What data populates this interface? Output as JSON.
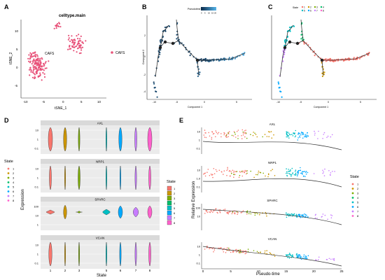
{
  "panel_labels": [
    "A",
    "B",
    "C",
    "D",
    "E"
  ],
  "panel_a": {
    "title": "celltype.main",
    "cluster_label": "CAFS",
    "legend_label": "CAFS",
    "xlabel": "tSNE_1",
    "ylabel": "tSNE_2",
    "xticks": [
      "-10",
      "-5",
      "0",
      "5",
      "10"
    ],
    "yticks": [
      "10",
      "5",
      "0",
      "-5"
    ],
    "point_color": "#e8537a"
  },
  "panel_b": {
    "legend_title": "Pseudotime",
    "legend_ticks": [
      "0",
      "5",
      "10",
      "15",
      "20"
    ],
    "xlabel": "Component 1",
    "ylabel": "Component 2",
    "xticks": [
      "-10",
      "-5",
      "0",
      "5"
    ],
    "yticks": [
      "2",
      "0",
      "-2",
      "-4"
    ],
    "colors": {
      "low": "#0b2a4a",
      "high": "#56b4e9"
    }
  },
  "panel_c": {
    "legend_title": "State",
    "legend_row1": [
      "1",
      "2",
      "3",
      "4"
    ],
    "legend_row2": [
      "5",
      "6",
      "7",
      "8"
    ],
    "xlabel": "Component 1",
    "ylabel": "Component 2",
    "xticks": [
      "-10",
      "-5",
      "0",
      "5"
    ]
  },
  "state_colors": [
    "#f8766d",
    "#cd9600",
    "#7cae00",
    "#00be67",
    "#00bfc4",
    "#00a9ff",
    "#c77cff",
    "#ff61cc"
  ],
  "panel_d": {
    "ylabel": "Expression",
    "xlabel": "State",
    "legend_title": "State",
    "legend_items": [
      "1",
      "2",
      "3",
      "4",
      "5",
      "6",
      "7",
      "8"
    ],
    "xticks": [
      "1",
      "2",
      "3",
      "5",
      "6",
      "7",
      "8"
    ],
    "facets": [
      {
        "name": "AXL",
        "yticks": [
          "10",
          "1",
          "0.1"
        ]
      },
      {
        "name": "NRP1",
        "yticks": [
          "10",
          "1",
          "0.1"
        ]
      },
      {
        "name": "SPARC",
        "yticks": [
          "100",
          "10",
          "1"
        ]
      },
      {
        "name": "VCAN",
        "yticks": [
          "10",
          "1",
          "0.1"
        ]
      }
    ]
  },
  "panel_e": {
    "ylabel": "Relative Expression",
    "xlabel": "Pseudo-time",
    "legend_title": "State",
    "legend_items": [
      "1",
      "2",
      "3",
      "4",
      "5",
      "6",
      "7",
      "8"
    ],
    "xticks": [
      "0",
      "5",
      "10",
      "15",
      "20",
      "25"
    ],
    "facets": [
      {
        "name": "AXL",
        "yticks": [
          "10",
          "1",
          "0.1"
        ]
      },
      {
        "name": "NRP1",
        "yticks": [
          "10",
          "1.0",
          "0.1"
        ]
      },
      {
        "name": "SPARC",
        "yticks": [
          "100",
          "10"
        ]
      },
      {
        "name": "VCAN",
        "yticks": [
          "10",
          "1",
          "0.1"
        ]
      }
    ]
  }
}
